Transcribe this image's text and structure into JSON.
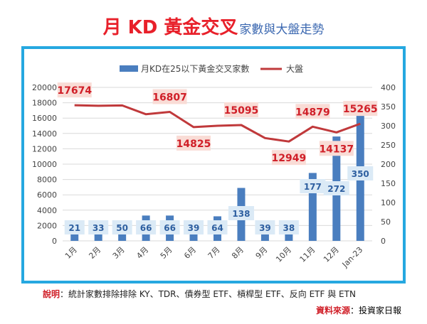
{
  "title": {
    "main": "月 KD 黃金交叉",
    "sub": "家數與大盤走勢"
  },
  "footnote": {
    "label": "說明",
    "text": "：統計家數排除排除 KY、TDR、債券型 ETF、槓桿型 ETF、反向 ETF 與 ETN"
  },
  "source": {
    "label": "資料來源",
    "text": "：投資家日報"
  },
  "chart_data": {
    "type": "bar+line",
    "categories": [
      "1月",
      "2月",
      "3月",
      "4月",
      "5月",
      "6月",
      "7月",
      "8月",
      "9月",
      "10月",
      "11月",
      "12月",
      "Jan-23"
    ],
    "series": [
      {
        "name": "月KD在25以下黃金交叉家數",
        "type": "bar",
        "axis": "right",
        "values": [
          21,
          33,
          50,
          66,
          66,
          39,
          64,
          138,
          39,
          38,
          177,
          272,
          350
        ],
        "color": "#4a7ebf"
      },
      {
        "name": "大盤",
        "type": "line",
        "axis": "left",
        "values": [
          17674,
          17600,
          17650,
          16500,
          16807,
          14825,
          15000,
          15095,
          13400,
          12949,
          14879,
          14137,
          15265
        ],
        "color": "#c0393b"
      }
    ],
    "left_axis": {
      "ylim": [
        0,
        20000
      ],
      "ticks": [
        "0",
        "2000",
        "4000",
        "6000",
        "8000",
        "10000",
        "12000",
        "14000",
        "16000",
        "18000",
        "20000"
      ]
    },
    "right_axis": {
      "ylim": [
        0,
        400
      ],
      "ticks": [
        "0",
        "50",
        "100",
        "150",
        "200",
        "250",
        "300",
        "350",
        "400"
      ]
    },
    "index_labels": [
      {
        "i": 0,
        "text": "17674",
        "pos": "above"
      },
      {
        "i": 4,
        "text": "16807",
        "pos": "above"
      },
      {
        "i": 5,
        "text": "14825",
        "pos": "below"
      },
      {
        "i": 7,
        "text": "15095",
        "pos": "above"
      },
      {
        "i": 9,
        "text": "12949",
        "pos": "below"
      },
      {
        "i": 10,
        "text": "14879",
        "pos": "above"
      },
      {
        "i": 11,
        "text": "14137",
        "pos": "below"
      },
      {
        "i": 12,
        "text": "15265",
        "pos": "above"
      }
    ],
    "legend_position": "top",
    "grid": true
  }
}
